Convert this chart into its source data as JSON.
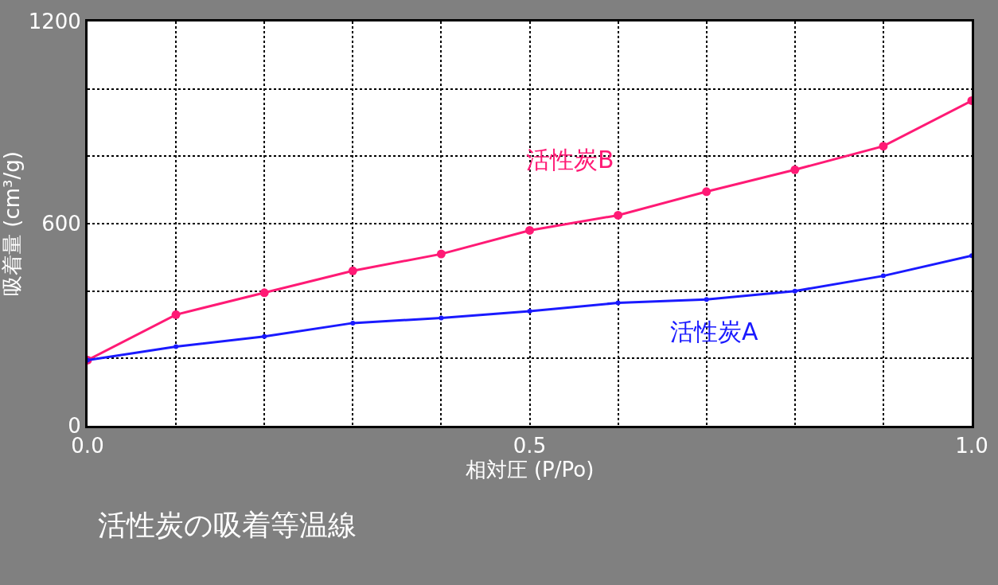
{
  "chart_data": {
    "type": "line",
    "title": "活性炭の吸着等温線",
    "xlabel": "相対圧 (P/Po)",
    "ylabel": "吸着量 (cm³/g)",
    "x": [
      0.0,
      0.1,
      0.2,
      0.3,
      0.4,
      0.5,
      0.6,
      0.7,
      0.8,
      0.9,
      1.0
    ],
    "series": [
      {
        "name": "活性炭B",
        "color": "#ff1a75",
        "values": [
          195,
          330,
          395,
          460,
          510,
          580,
          625,
          695,
          760,
          830,
          965
        ]
      },
      {
        "name": "活性炭A",
        "color": "#1a1aff",
        "values": [
          195,
          235,
          265,
          305,
          320,
          340,
          365,
          375,
          400,
          445,
          505
        ]
      }
    ],
    "xlim": [
      0.0,
      1.0
    ],
    "ylim": [
      0,
      1200
    ],
    "xticks": [
      {
        "value": 0.0,
        "label": "0.0"
      },
      {
        "value": 0.1,
        "label": null
      },
      {
        "value": 0.2,
        "label": null
      },
      {
        "value": 0.3,
        "label": null
      },
      {
        "value": 0.4,
        "label": null
      },
      {
        "value": 0.5,
        "label": "0.5"
      },
      {
        "value": 0.6,
        "label": null
      },
      {
        "value": 0.7,
        "label": null
      },
      {
        "value": 0.8,
        "label": null
      },
      {
        "value": 0.9,
        "label": null
      },
      {
        "value": 1.0,
        "label": "1.0"
      }
    ],
    "yticks": [
      0,
      {
        "value": 200,
        "label": null
      },
      {
        "value": 400,
        "label": null
      },
      600,
      {
        "value": 800,
        "label": null
      },
      {
        "value": 1000,
        "label": null
      },
      1200
    ],
    "grid": true,
    "marker": "circle",
    "line_style": "solid",
    "legend": false
  }
}
